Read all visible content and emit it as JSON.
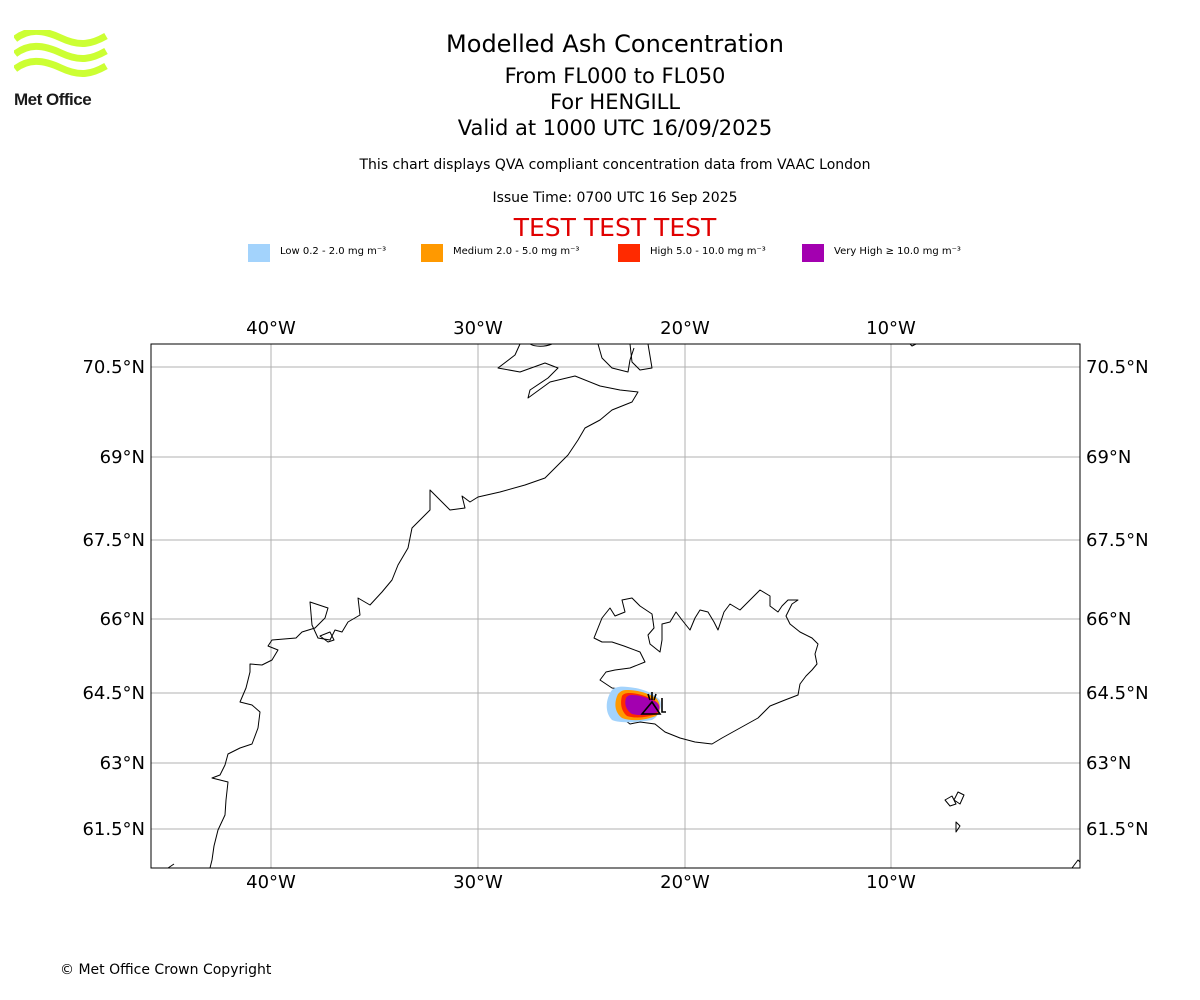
{
  "branding": {
    "logo_text": "Met Office",
    "logo_color": "#ccff33"
  },
  "header": {
    "title": "Modelled Ash Concentration",
    "levels": "From FL000 to FL050",
    "volcano": "For HENGILL",
    "valid": "Valid at 1000 UTC 16/09/2025",
    "note": "This chart displays QVA compliant concentration data from VAAC London",
    "issue": "Issue Time: 0700 UTC 16 Sep 2025",
    "test_banner": "TEST TEST TEST"
  },
  "legend": [
    {
      "label": "Low 0.2 - 2.0 mg m⁻³",
      "color": "#a3d3fc"
    },
    {
      "label": "Medium 2.0 - 5.0 mg m⁻³",
      "color": "#ff9900"
    },
    {
      "label": "High 5.0 - 10.0 mg m⁻³",
      "color": "#ff2a00"
    },
    {
      "label": "Very High ≥ 10.0 mg m⁻³",
      "color": "#a300b0"
    }
  ],
  "map": {
    "longitude_labels": [
      "40°W",
      "30°W",
      "20°W",
      "10°W"
    ],
    "latitude_labels": [
      "70.5°N",
      "69°N",
      "67.5°N",
      "66°N",
      "64.5°N",
      "63°N",
      "61.5°N"
    ],
    "volcano_marker": "volcano-symbol"
  },
  "footer": {
    "copyright": "© Met Office Crown Copyright"
  }
}
